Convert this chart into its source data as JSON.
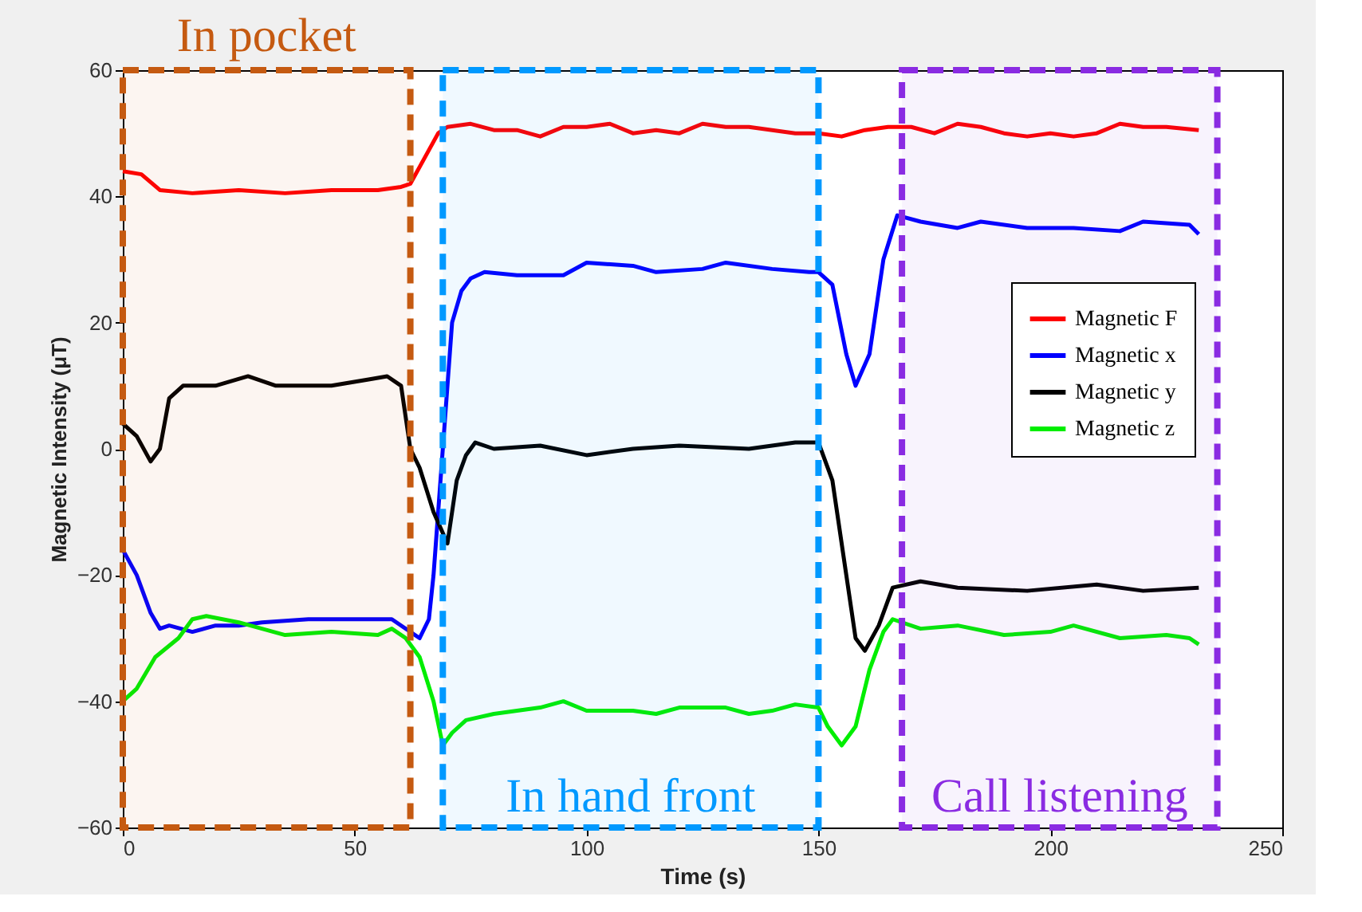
{
  "chart_data": {
    "type": "line",
    "xlabel": "Time (s)",
    "ylabel": "Magnetic Intensity (μT)",
    "xlim": [
      0,
      250
    ],
    "xticks": [
      0,
      50,
      100,
      150,
      200,
      250
    ],
    "ylim": [
      -60,
      60
    ],
    "yticks": [
      -60,
      -40,
      -20,
      0,
      20,
      40,
      60
    ],
    "grid": false,
    "legend": "right",
    "line_style": "solid",
    "marker": "none",
    "series": [
      {
        "name": "Magnetic F",
        "color": "#ff0000",
        "x": [
          0,
          4,
          8,
          15,
          25,
          35,
          45,
          55,
          60,
          62,
          65,
          68,
          70,
          75,
          80,
          85,
          90,
          95,
          100,
          105,
          110,
          115,
          120,
          125,
          130,
          135,
          140,
          145,
          150,
          155,
          160,
          165,
          170,
          175,
          180,
          185,
          190,
          195,
          200,
          205,
          210,
          215,
          220,
          225,
          232
        ],
        "values": [
          44,
          43.5,
          41,
          40.5,
          41,
          40.5,
          41,
          41,
          41.5,
          42,
          46,
          50,
          51,
          51.5,
          50.5,
          50.5,
          49.5,
          51,
          51,
          51.5,
          50,
          50.5,
          50,
          51.5,
          51,
          51,
          50.5,
          50,
          50,
          49.5,
          50.5,
          51,
          51,
          50,
          51.5,
          51,
          50,
          49.5,
          50,
          49.5,
          50,
          51.5,
          51,
          51,
          50.5
        ]
      },
      {
        "name": "Magnetic x",
        "color": "#0000ff",
        "x": [
          0,
          3,
          6,
          8,
          10,
          15,
          20,
          25,
          30,
          40,
          50,
          55,
          58,
          62,
          64,
          66,
          67,
          69,
          71,
          73,
          75,
          78,
          85,
          95,
          100,
          110,
          115,
          125,
          130,
          140,
          148,
          150,
          153,
          156,
          158,
          161,
          164,
          167,
          172,
          180,
          185,
          195,
          205,
          215,
          220,
          230,
          232
        ],
        "values": [
          -16,
          -20,
          -26,
          -28.5,
          -28,
          -29,
          -28,
          -28,
          -27.5,
          -27,
          -27,
          -27,
          -27,
          -29,
          -30,
          -27,
          -20,
          0,
          20,
          25,
          27,
          28,
          27.5,
          27.5,
          29.5,
          29,
          28,
          28.5,
          29.5,
          28.5,
          28,
          28,
          26,
          15,
          10,
          15,
          30,
          37,
          36,
          35,
          36,
          35,
          35,
          34.5,
          36,
          35.5,
          34
        ]
      },
      {
        "name": "Magnetic y",
        "color": "#000000",
        "x": [
          0,
          3,
          6,
          8,
          10,
          13,
          20,
          27,
          33,
          45,
          53,
          57,
          60,
          62,
          64,
          67,
          70,
          72,
          74,
          76,
          80,
          90,
          100,
          110,
          120,
          135,
          145,
          150,
          153,
          156,
          158,
          160,
          163,
          166,
          172,
          180,
          195,
          210,
          220,
          232
        ],
        "values": [
          4,
          2,
          -2,
          0,
          8,
          10,
          10,
          11.5,
          10,
          10,
          11,
          11.5,
          10,
          0,
          -3,
          -10,
          -15,
          -5,
          -1,
          1,
          0,
          0.5,
          -1,
          0,
          0.5,
          0,
          1,
          1,
          -5,
          -20,
          -30,
          -32,
          -28,
          -22,
          -21,
          -22,
          -22.5,
          -21.5,
          -22.5,
          -22
        ]
      },
      {
        "name": "Magnetic z",
        "color": "#00ee00",
        "x": [
          0,
          3,
          7,
          12,
          15,
          18,
          25,
          30,
          35,
          45,
          55,
          58,
          61,
          64,
          67,
          69,
          71,
          74,
          80,
          90,
          95,
          100,
          110,
          115,
          120,
          130,
          135,
          140,
          145,
          150,
          152,
          155,
          158,
          161,
          164,
          166,
          172,
          180,
          190,
          200,
          205,
          215,
          225,
          230,
          232
        ],
        "values": [
          -40,
          -38,
          -33,
          -30,
          -27,
          -26.5,
          -27.5,
          -28.5,
          -29.5,
          -29,
          -29.5,
          -28.5,
          -30,
          -33,
          -40,
          -47,
          -45,
          -43,
          -42,
          -41,
          -40,
          -41.5,
          -41.5,
          -42,
          -41,
          -41,
          -42,
          -41.5,
          -40.5,
          -41,
          -44,
          -47,
          -44,
          -35,
          -29,
          -27,
          -28.5,
          -28,
          -29.5,
          -29,
          -28,
          -30,
          -29.5,
          -30,
          -31
        ]
      }
    ],
    "bands": [
      {
        "axis": "x",
        "from": 0,
        "to": 62,
        "label": "In pocket",
        "color": "#c55a11"
      },
      {
        "axis": "x",
        "from": 69,
        "to": 150,
        "label": "In hand front",
        "color": "#0099ff"
      },
      {
        "axis": "x",
        "from": 168,
        "to": 236,
        "label": "Call listening",
        "color": "#8a2be2"
      }
    ]
  }
}
